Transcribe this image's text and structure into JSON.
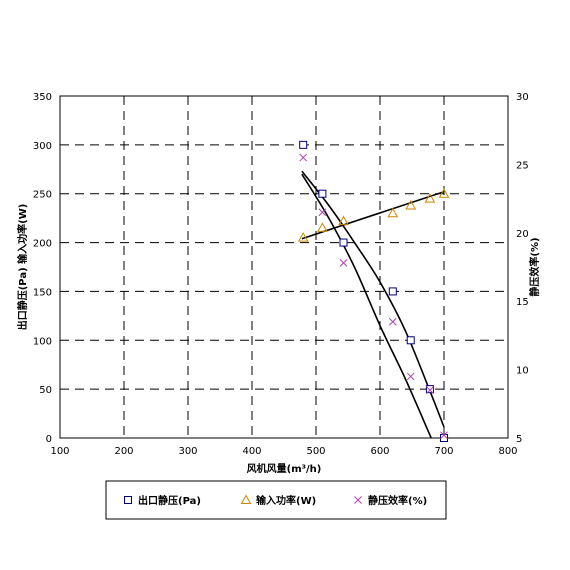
{
  "chart_data": {
    "type": "scatter",
    "xlabel": "风机风量(m³/h)",
    "ylabel_left": "出口静压(Pa) 输入功率(W)",
    "ylabel_right": "静压效率(%)",
    "xlim": [
      100,
      800
    ],
    "ylim_left": [
      0,
      350
    ],
    "ylim_right": [
      5,
      30
    ],
    "x_ticks": [
      100,
      200,
      300,
      400,
      500,
      600,
      700,
      800
    ],
    "y_ticks_left": [
      0,
      50,
      100,
      150,
      200,
      250,
      300,
      350
    ],
    "y_ticks_right": [
      5,
      10,
      15,
      20,
      25,
      30
    ],
    "grid": true,
    "legend_position": "bottom",
    "series": [
      {
        "name": "出口静压(Pa)",
        "axis": "left",
        "marker": "square",
        "color": "#000080",
        "x": [
          480,
          510,
          543,
          620,
          648,
          678,
          700
        ],
        "y": [
          300,
          250,
          200,
          150,
          100,
          50,
          0
        ],
        "fit_curve": {
          "x": [
            478,
            520,
            560,
            600,
            640,
            680
          ],
          "y": [
            270,
            225,
            175,
            115,
            60,
            0
          ]
        }
      },
      {
        "name": "输入功率(W)",
        "axis": "left",
        "marker": "triangle",
        "color": "#cc8800",
        "x": [
          480,
          510,
          543,
          620,
          648,
          678,
          700
        ],
        "y": [
          205,
          215,
          222,
          230,
          238,
          245,
          250
        ],
        "fit_curve": {
          "x": [
            478,
            700
          ],
          "y": [
            204,
            252
          ]
        }
      },
      {
        "name": "静压效率(%)",
        "axis": "right",
        "marker": "x",
        "color": "#b040b0",
        "x": [
          480,
          510,
          543,
          620,
          648,
          678,
          700
        ],
        "y": [
          25.5,
          21.5,
          17.8,
          13.5,
          9.5,
          8.5,
          5.2
        ],
        "fit_curve": {
          "x": [
            478,
            520,
            560,
            600,
            640,
            680,
            700
          ],
          "y": [
            24.5,
            22,
            19.3,
            16.4,
            12.8,
            8.2,
            5.8
          ]
        }
      }
    ]
  }
}
